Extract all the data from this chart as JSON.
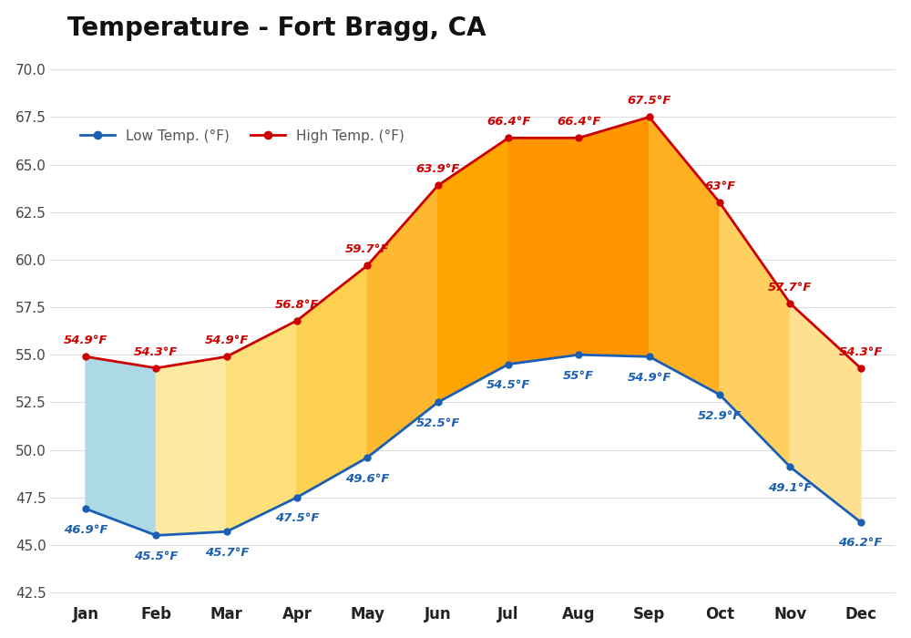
{
  "title": "Temperature - Fort Bragg, CA",
  "months": [
    "Jan",
    "Feb",
    "Mar",
    "Apr",
    "May",
    "Jun",
    "Jul",
    "Aug",
    "Sep",
    "Oct",
    "Nov",
    "Dec"
  ],
  "low_temps": [
    46.9,
    45.5,
    45.7,
    47.5,
    49.6,
    52.5,
    54.5,
    55.0,
    54.9,
    52.9,
    49.1,
    46.2
  ],
  "high_temps": [
    54.9,
    54.3,
    54.9,
    56.8,
    59.7,
    63.9,
    66.4,
    66.4,
    67.5,
    63.0,
    57.7,
    54.3
  ],
  "low_labels": [
    "46.9°F",
    "45.5°F",
    "45.7°F",
    "47.5°F",
    "49.6°F",
    "52.5°F",
    "54.5°F",
    "55°F",
    "54.9°F",
    "52.9°F",
    "49.1°F",
    "46.2°F"
  ],
  "high_labels": [
    "54.9°F",
    "54.3°F",
    "54.9°F",
    "56.8°F",
    "59.7°F",
    "63.9°F",
    "66.4°F",
    "66.4°F",
    "67.5°F",
    "63°F",
    "57.7°F",
    "54.3°F"
  ],
  "low_color": "#1a5fb4",
  "high_color": "#cc0000",
  "fill_color_jan": "#add8e6",
  "fill_colors": [
    "#add8e6",
    "#fdeaa0",
    "#fde07a",
    "#fdd050",
    "#fdb830",
    "#ffa500",
    "#ff9500",
    "#ff9500",
    "#ffb020",
    "#ffd060",
    "#fee090",
    "#fef0c0"
  ],
  "ylim": [
    42.0,
    71.0
  ],
  "yticks": [
    42.5,
    45.0,
    47.5,
    50.0,
    52.5,
    55.0,
    57.5,
    60.0,
    62.5,
    65.0,
    67.5,
    70.0
  ],
  "bg_color": "#ffffff",
  "grid_color": "#dddddd",
  "label_low": "Low Temp. (°F)",
  "label_high": "High Temp. (°F)"
}
